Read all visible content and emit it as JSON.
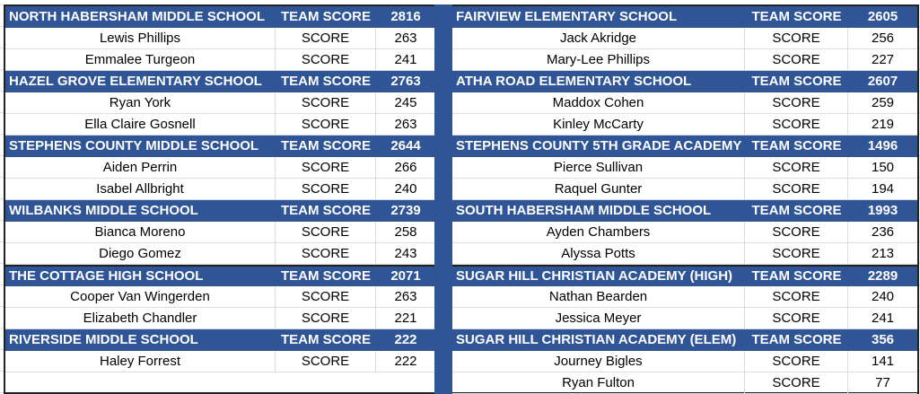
{
  "header_color": "#2f5597",
  "team_score_label": "TEAM SCORE",
  "score_label": "SCORE",
  "left": [
    {
      "school": "NORTH HABERSHAM MIDDLE SCHOOL",
      "team_score": "2816",
      "players": [
        {
          "name": "Lewis Phillips",
          "score": "263"
        },
        {
          "name": "Emmalee Turgeon",
          "score": "241"
        }
      ]
    },
    {
      "school": "HAZEL GROVE ELEMENTARY SCHOOL",
      "team_score": "2763",
      "players": [
        {
          "name": "Ryan York",
          "score": "245"
        },
        {
          "name": "Ella Claire Gosnell",
          "score": "263"
        }
      ]
    },
    {
      "school": "STEPHENS COUNTY MIDDLE SCHOOL",
      "team_score": "2644",
      "players": [
        {
          "name": "Aiden Perrin",
          "score": "266"
        },
        {
          "name": "Isabel Allbright",
          "score": "240"
        }
      ]
    },
    {
      "school": "WILBANKS MIDDLE SCHOOL",
      "team_score": "2739",
      "players": [
        {
          "name": "Bianca Moreno",
          "score": "258"
        },
        {
          "name": "Diego Gomez",
          "score": "243"
        }
      ]
    },
    {
      "school": "THE COTTAGE HIGH SCHOOL",
      "team_score": "2071",
      "players": [
        {
          "name": "Cooper Van Wingerden",
          "score": "263"
        },
        {
          "name": "Elizabeth Chandler",
          "score": "221"
        }
      ]
    },
    {
      "school": "RIVERSIDE MIDDLE SCHOOL",
      "team_score": "222",
      "players": [
        {
          "name": "Haley Forrest",
          "score": "222"
        }
      ]
    }
  ],
  "right": [
    {
      "school": "FAIRVIEW ELEMENTARY SCHOOL",
      "team_score": "2605",
      "players": [
        {
          "name": "Jack Akridge",
          "score": "256"
        },
        {
          "name": "Mary-Lee Phillips",
          "score": "227"
        }
      ]
    },
    {
      "school": "ATHA ROAD ELEMENTARY SCHOOL",
      "team_score": "2607",
      "players": [
        {
          "name": "Maddox Cohen",
          "score": "259"
        },
        {
          "name": "Kinley McCarty",
          "score": "219"
        }
      ]
    },
    {
      "school": "STEPHENS COUNTY 5TH GRADE ACADEMY",
      "team_score": "1496",
      "players": [
        {
          "name": "Pierce Sullivan",
          "score": "150"
        },
        {
          "name": "Raquel Gunter",
          "score": "194"
        }
      ]
    },
    {
      "school": "SOUTH HABERSHAM MIDDLE SCHOOL",
      "team_score": "1993",
      "players": [
        {
          "name": "Ayden Chambers",
          "score": "236"
        },
        {
          "name": "Alyssa Potts",
          "score": "213"
        }
      ]
    },
    {
      "school": "SUGAR HILL CHRISTIAN ACADEMY (HIGH)",
      "team_score": "2289",
      "players": [
        {
          "name": "Nathan Bearden",
          "score": "240"
        },
        {
          "name": "Jessica Meyer",
          "score": "241"
        }
      ]
    },
    {
      "school": "SUGAR HILL CHRISTIAN ACADEMY (ELEM)",
      "team_score": "356",
      "players": [
        {
          "name": "Journey Bigles",
          "score": "141"
        },
        {
          "name": "Ryan Fulton",
          "score": "77"
        }
      ]
    }
  ]
}
